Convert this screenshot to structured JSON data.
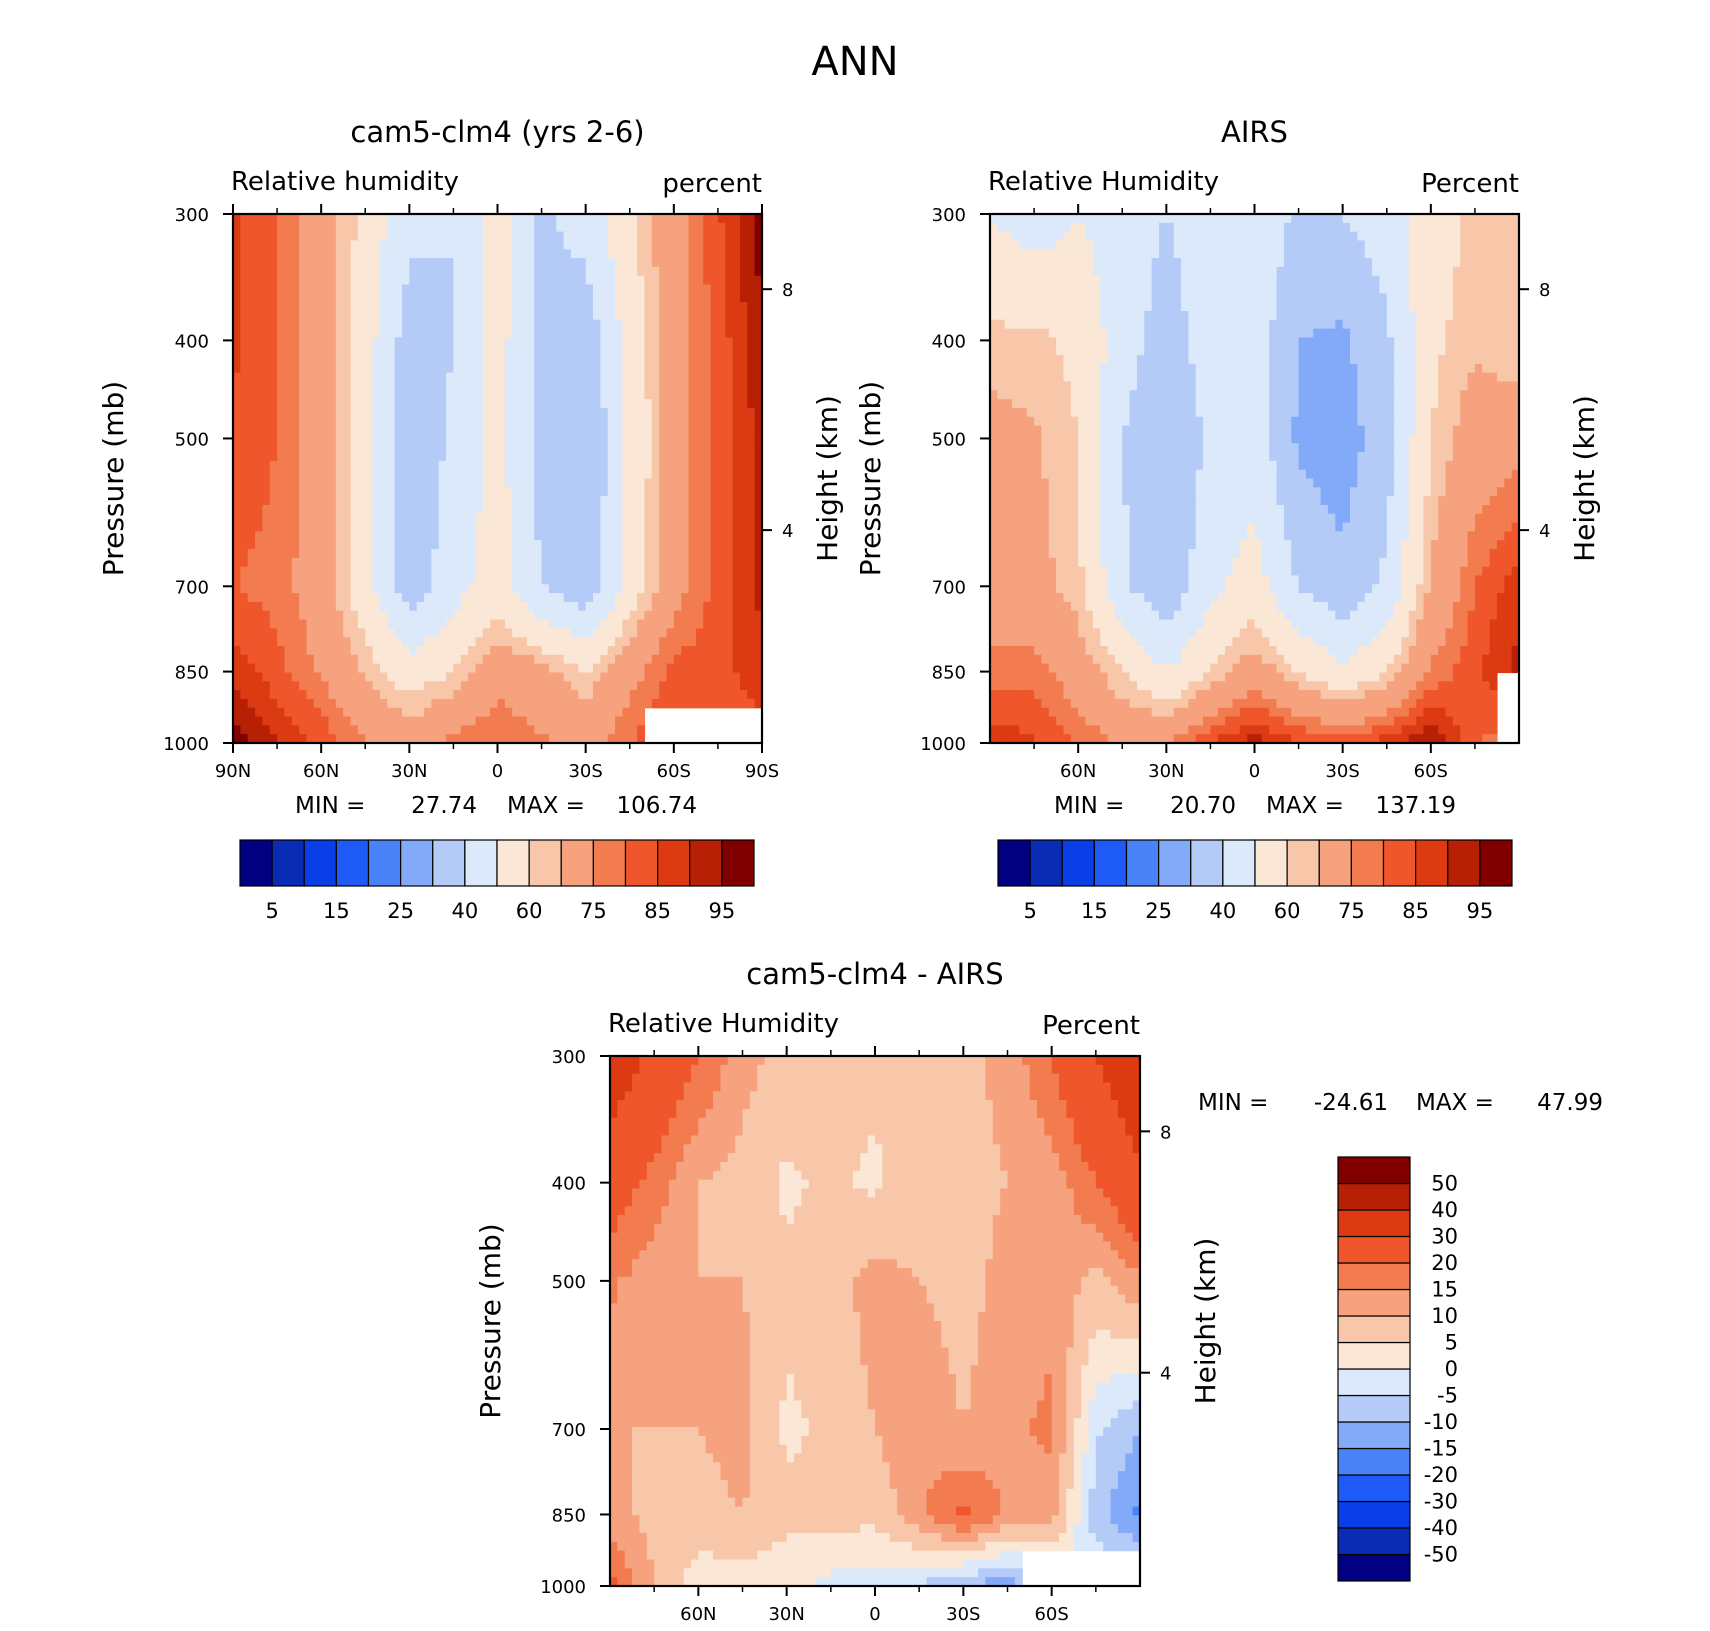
{
  "figure_title": "ANN",
  "colors": {
    "seq": [
      "#000080",
      "#0a2bb4",
      "#0a3ee6",
      "#1e5af5",
      "#4a82f8",
      "#82aaf8",
      "#b4cbf8",
      "#dce9fa",
      "#fbe7d6",
      "#f8c7a9",
      "#f6a27e",
      "#f27c4f",
      "#f0562c",
      "#db3a12",
      "#b82006",
      "#800000"
    ],
    "diff": [
      "#000080",
      "#0a2bb4",
      "#0a3ee6",
      "#1e5af5",
      "#4a82f8",
      "#82aaf8",
      "#b4cbf8",
      "#dce9fa",
      "#fbe7d6",
      "#f8c7a9",
      "#f6a27e",
      "#f27c4f",
      "#f0562c",
      "#db3a12",
      "#b82006",
      "#800000"
    ]
  },
  "panels": {
    "model": {
      "title": "cam5-clm4 (yrs 2-6)",
      "left_label": "Relative humidity",
      "right_label": "percent",
      "ylabel": "Pressure (mb)",
      "ylabel_right": "Height (km)",
      "min_label": "MIN =",
      "min_value": "27.74",
      "max_label": "MAX =",
      "max_value": "106.74"
    },
    "obs": {
      "title": "AIRS",
      "left_label": "Relative Humidity",
      "right_label": "Percent",
      "ylabel": "Pressure (mb)",
      "ylabel_right": "Height (km)",
      "min_label": "MIN =",
      "min_value": "20.70",
      "max_label": "MAX =",
      "max_value": "137.19"
    },
    "diff": {
      "title": "cam5-clm4 - AIRS",
      "left_label": "Relative Humidity",
      "right_label": "Percent",
      "ylabel": "Pressure (mb)",
      "ylabel_right": "Height (km)",
      "min_label": "MIN =",
      "min_value": "-24.61",
      "max_label": "MAX =",
      "max_value": "47.99"
    }
  },
  "chart_data": [
    {
      "type": "heatmap",
      "title": "cam5-clm4 (yrs 2-6)",
      "subtitle_left": "Relative humidity",
      "subtitle_right": "percent",
      "xlabel": "",
      "ylabel": "Pressure (mb)",
      "ylabel_right": "Height (km)",
      "x_ticks": [
        "90N",
        "60N",
        "30N",
        "0",
        "30S",
        "60S",
        "90S"
      ],
      "x_tick_values": [
        90,
        60,
        30,
        0,
        -30,
        -60,
        -90
      ],
      "y_ticks": [
        "300",
        "400",
        "500",
        "700",
        "850",
        "1000"
      ],
      "y_tick_values": [
        300,
        400,
        500,
        700,
        850,
        1000
      ],
      "y_right_ticks": [
        "8",
        "4"
      ],
      "y_right_tick_values": [
        8,
        4
      ],
      "y_right_tick_pressures": [
        356,
        616
      ],
      "colorbar_labels": [
        "5",
        "15",
        "25",
        "40",
        "60",
        "75",
        "85",
        "95"
      ],
      "levels": [
        5,
        10,
        15,
        20,
        25,
        30,
        40,
        50,
        60,
        65,
        75,
        80,
        85,
        90,
        95
      ],
      "x_lat": [
        90,
        75,
        60,
        45,
        30,
        15,
        0,
        -15,
        -30,
        -45,
        -60,
        -75,
        -90
      ],
      "y_p": [
        300,
        400,
        500,
        700,
        850,
        1000
      ],
      "z": [
        [
          86,
          80,
          70,
          57,
          42,
          40,
          56,
          38,
          44,
          58,
          72,
          84,
          98
        ],
        [
          86,
          80,
          71,
          55,
          35,
          40,
          54,
          38,
          33,
          54,
          70,
          82,
          94
        ],
        [
          84,
          80,
          71,
          54,
          32,
          42,
          54,
          36,
          30,
          52,
          70,
          82,
          92
        ],
        [
          80,
          78,
          70,
          54,
          34,
          46,
          55,
          40,
          33,
          54,
          72,
          82,
          91
        ],
        [
          88,
          82,
          74,
          64,
          55,
          60,
          72,
          68,
          60,
          72,
          82,
          82,
          90
        ],
        [
          98,
          90,
          84,
          76,
          70,
          78,
          80,
          76,
          72,
          80,
          86,
          80,
          80
        ]
      ],
      "missing": {
        "lat_from": -50,
        "lat_to": -90,
        "p_from": 925,
        "p_to": 1000
      },
      "min": 27.74,
      "max": 106.74
    },
    {
      "type": "heatmap",
      "title": "AIRS",
      "subtitle_left": "Relative Humidity",
      "subtitle_right": "Percent",
      "xlabel": "",
      "ylabel": "Pressure (mb)",
      "ylabel_right": "Height (km)",
      "x_ticks": [
        "60N",
        "30N",
        "0",
        "30S",
        "60S"
      ],
      "x_tick_values": [
        60,
        30,
        0,
        -30,
        -60
      ],
      "y_ticks": [
        "300",
        "400",
        "500",
        "700",
        "850",
        "1000"
      ],
      "y_tick_values": [
        300,
        400,
        500,
        700,
        850,
        1000
      ],
      "y_right_ticks": [
        "8",
        "4"
      ],
      "y_right_tick_values": [
        8,
        4
      ],
      "y_right_tick_pressures": [
        356,
        616
      ],
      "colorbar_labels": [
        "5",
        "15",
        "25",
        "40",
        "60",
        "75",
        "85",
        "95"
      ],
      "levels": [
        5,
        10,
        15,
        20,
        25,
        30,
        40,
        50,
        60,
        65,
        75,
        80,
        85,
        90,
        95
      ],
      "x_lat": [
        90,
        75,
        60,
        45,
        30,
        15,
        0,
        -15,
        -30,
        -45,
        -60,
        -75,
        -90
      ],
      "y_p": [
        300,
        400,
        500,
        700,
        850,
        1000
      ],
      "z": [
        [
          50,
          45,
          50,
          45,
          40,
          45,
          48,
          38,
          40,
          45,
          55,
          62,
          60
        ],
        [
          62,
          62,
          58,
          45,
          35,
          45,
          46,
          30,
          28,
          38,
          58,
          64,
          60
        ],
        [
          68,
          66,
          60,
          40,
          30,
          42,
          46,
          28,
          25,
          36,
          60,
          70,
          72
        ],
        [
          70,
          68,
          62,
          42,
          32,
          48,
          54,
          40,
          33,
          42,
          66,
          80,
          88
        ],
        [
          78,
          78,
          70,
          60,
          50,
          60,
          70,
          60,
          52,
          60,
          76,
          84,
          92
        ],
        [
          88,
          86,
          80,
          74,
          74,
          86,
          92,
          86,
          82,
          88,
          95,
          80,
          78
        ]
      ],
      "missing": {
        "lat_from": -82,
        "lat_to": -90,
        "p_from": 850,
        "p_to": 1000
      },
      "min": 20.7,
      "max": 137.19
    },
    {
      "type": "heatmap",
      "title": "cam5-clm4 - AIRS",
      "subtitle_left": "Relative Humidity",
      "subtitle_right": "Percent",
      "xlabel": "",
      "ylabel": "Pressure (mb)",
      "ylabel_right": "Height (km)",
      "x_ticks": [
        "60N",
        "30N",
        "0",
        "30S",
        "60S"
      ],
      "x_tick_values": [
        60,
        30,
        0,
        -30,
        -60
      ],
      "y_ticks": [
        "300",
        "400",
        "500",
        "700",
        "850",
        "1000"
      ],
      "y_tick_values": [
        300,
        400,
        500,
        700,
        850,
        1000
      ],
      "y_right_ticks": [
        "8",
        "4"
      ],
      "y_right_tick_values": [
        8,
        4
      ],
      "y_right_tick_pressures": [
        356,
        616
      ],
      "colorbar_labels": [
        "50",
        "40",
        "30",
        "20",
        "15",
        "10",
        "5",
        "0",
        "-5",
        "-10",
        "-15",
        "-20",
        "-30",
        "-40",
        "-50"
      ],
      "levels": [
        -50,
        -40,
        -30,
        -20,
        -15,
        -10,
        -5,
        0,
        5,
        10,
        15,
        20,
        30,
        40,
        50
      ],
      "x_lat": [
        90,
        75,
        60,
        45,
        30,
        15,
        0,
        -15,
        -30,
        -45,
        -60,
        -75,
        -90
      ],
      "y_p": [
        300,
        400,
        500,
        700,
        850,
        1000
      ],
      "z": [
        [
          36,
          28,
          20,
          12,
          8,
          8,
          6,
          8,
          8,
          12,
          20,
          30,
          38
        ],
        [
          24,
          18,
          10,
          8,
          4,
          6,
          4,
          8,
          8,
          10,
          12,
          20,
          28
        ],
        [
          16,
          12,
          10,
          10,
          6,
          8,
          12,
          10,
          8,
          12,
          14,
          8,
          14
        ],
        [
          10,
          10,
          10,
          12,
          4,
          6,
          10,
          14,
          10,
          14,
          16,
          -4,
          -10
        ],
        [
          12,
          8,
          8,
          10,
          6,
          8,
          6,
          14,
          22,
          14,
          12,
          -8,
          -16
        ],
        [
          22,
          10,
          2,
          2,
          2,
          -2,
          -2,
          -6,
          -10,
          -14,
          -4,
          0,
          0
        ]
      ],
      "missing": {
        "lat_from": -50,
        "lat_to": -90,
        "p_from": 925,
        "p_to": 1000
      },
      "min": -24.61,
      "max": 47.99
    }
  ]
}
